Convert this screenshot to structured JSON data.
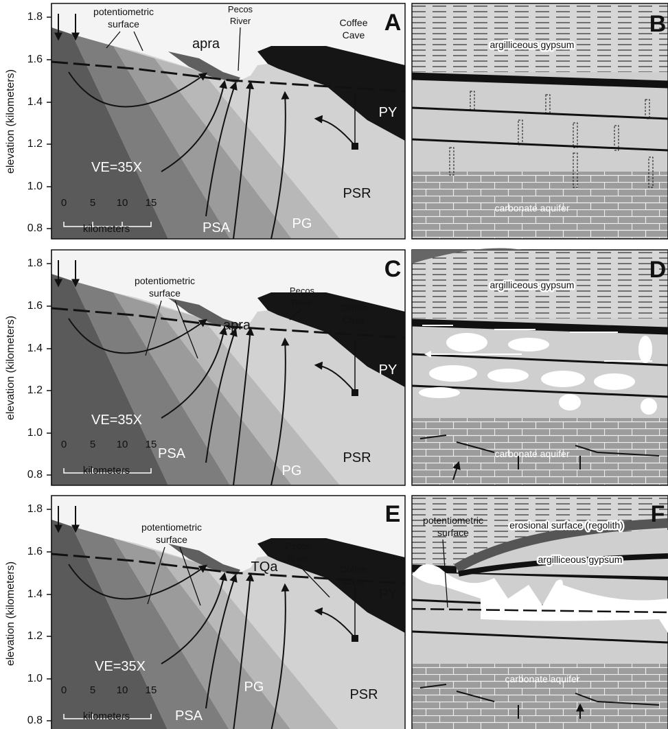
{
  "y_axis": {
    "label": "elevation (kilometers)",
    "ticks": [
      "1.8",
      "1.6",
      "1.4",
      "1.2",
      "1.0",
      "0.8"
    ]
  },
  "scale_bar": {
    "ticks": [
      "0",
      "5",
      "10",
      "15"
    ],
    "unit": "kilometers"
  },
  "panels": {
    "A": {
      "letter": "A",
      "potentiometric": [
        "potentiometric",
        "surface"
      ],
      "unit": "apra",
      "river": [
        "Pecos",
        "River"
      ],
      "cave": [
        "Coffee",
        "Cave"
      ],
      "py": "PY",
      "ve": "VE=35X",
      "psa": "PSA",
      "pg": "PG",
      "psr": "PSR"
    },
    "B": {
      "letter": "B",
      "gypsum": "argilliceous gypsum",
      "carbonate": "carbonate aquifer"
    },
    "C": {
      "letter": "C",
      "potentiometric": [
        "potentiometric",
        "surface"
      ],
      "unit": "apra",
      "river": [
        "Pecos",
        "River"
      ],
      "cave": [
        "Coffee",
        "Cave"
      ],
      "py": "PY",
      "ve": "VE=35X",
      "psa": "PSA",
      "pg": "PG",
      "psr": "PSR"
    },
    "D": {
      "letter": "D",
      "gypsum": "argilliceous gypsum",
      "carbonate": "carbonate aquifer"
    },
    "E": {
      "letter": "E",
      "potentiometric": [
        "potentiometric",
        "surface"
      ],
      "unit": "TQa",
      "river": [
        "Pecos",
        "River"
      ],
      "cave": [
        "Coffee",
        "Cave"
      ],
      "py": "PY",
      "ve": "VE=35X",
      "psa": "PSA",
      "pg": "PG",
      "psr": "PSR"
    },
    "F": {
      "letter": "F",
      "potentiometric": [
        "potentiometric",
        "surface"
      ],
      "erosional": "erosional surface (regolith)",
      "gypsum": "argilliceous gypsum",
      "carbonate": "carbonate aquifer"
    }
  }
}
